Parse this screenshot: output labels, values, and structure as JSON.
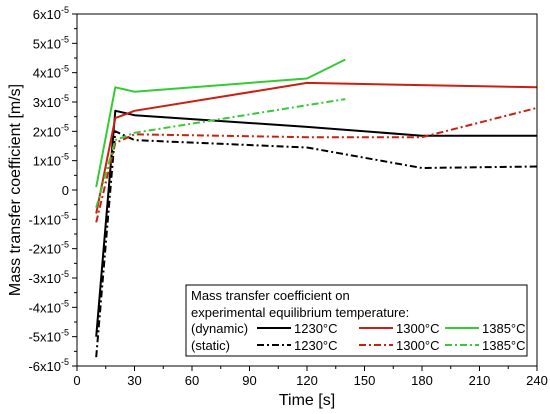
{
  "chart_data": {
    "type": "line",
    "xlabel": "Time [s]",
    "ylabel": "Mass transfer coefficient [m/s]",
    "xlim": [
      0,
      240
    ],
    "ylim": [
      -6e-05,
      6e-05
    ],
    "x_ticks": [
      0,
      30,
      60,
      90,
      120,
      150,
      180,
      210,
      240
    ],
    "y_ticks": [
      {
        "value": 6e-05,
        "mantissa": "6x10",
        "exp": "-5"
      },
      {
        "value": 5e-05,
        "mantissa": "5x10",
        "exp": "-5"
      },
      {
        "value": 4e-05,
        "mantissa": "4x10",
        "exp": "-5"
      },
      {
        "value": 3e-05,
        "mantissa": "3x10",
        "exp": "-5"
      },
      {
        "value": 2e-05,
        "mantissa": "2x10",
        "exp": "-5"
      },
      {
        "value": 1e-05,
        "mantissa": "1x10",
        "exp": "-5"
      },
      {
        "value": 0,
        "mantissa": "0",
        "exp": ""
      },
      {
        "value": -1e-05,
        "mantissa": "-1x10",
        "exp": "-5"
      },
      {
        "value": -2e-05,
        "mantissa": "-2x10",
        "exp": "-5"
      },
      {
        "value": -3e-05,
        "mantissa": "-3x10",
        "exp": "-5"
      },
      {
        "value": -4e-05,
        "mantissa": "-4x10",
        "exp": "-5"
      },
      {
        "value": -5e-05,
        "mantissa": "-5x10",
        "exp": "-5"
      },
      {
        "value": -6e-05,
        "mantissa": "-6x10",
        "exp": "-5"
      }
    ],
    "grid": false,
    "legend": {
      "placement": "bottom-right",
      "title_line1": "Mass transfer coefficient on",
      "title_line2": "experimental equilibrium temperature:",
      "row_labels": [
        "(dynamic)",
        "(static)"
      ]
    },
    "series": [
      {
        "name": "1230°C",
        "group": "dynamic",
        "color": "#000000",
        "dash": "solid",
        "x": [
          10,
          20,
          30,
          120,
          180,
          240
        ],
        "y": [
          -5e-05,
          2.7e-05,
          2.55e-05,
          2.15e-05,
          1.85e-05,
          1.85e-05
        ]
      },
      {
        "name": "1300°C",
        "group": "dynamic",
        "color": "#cc1f10",
        "dash": "solid",
        "x": [
          10,
          20,
          30,
          120,
          240
        ],
        "y": [
          -8e-06,
          2.45e-05,
          2.7e-05,
          3.65e-05,
          3.5e-05
        ]
      },
      {
        "name": "1385°C",
        "group": "dynamic",
        "color": "#33cc33",
        "dash": "solid",
        "x": [
          10,
          20,
          30,
          120,
          140
        ],
        "y": [
          1e-06,
          3.5e-05,
          3.35e-05,
          3.8e-05,
          4.45e-05
        ]
      },
      {
        "name": "1230°C",
        "group": "static",
        "color": "#000000",
        "dash": "dashdot",
        "x": [
          10,
          20,
          30,
          120,
          180,
          240
        ],
        "y": [
          -5.7e-05,
          2e-05,
          1.7e-05,
          1.45e-05,
          7.5e-06,
          8e-06
        ]
      },
      {
        "name": "1300°C",
        "group": "static",
        "color": "#cc1f10",
        "dash": "dashdot",
        "x": [
          10,
          20,
          30,
          120,
          180,
          240
        ],
        "y": [
          -1.1e-05,
          1.6e-05,
          1.9e-05,
          1.8e-05,
          1.8e-05,
          2.8e-05
        ]
      },
      {
        "name": "1385°C",
        "group": "static",
        "color": "#33cc33",
        "dash": "dashdot",
        "x": [
          10,
          20,
          30,
          140
        ],
        "y": [
          -6e-06,
          1.7e-05,
          1.95e-05,
          3.1e-05
        ]
      }
    ]
  }
}
